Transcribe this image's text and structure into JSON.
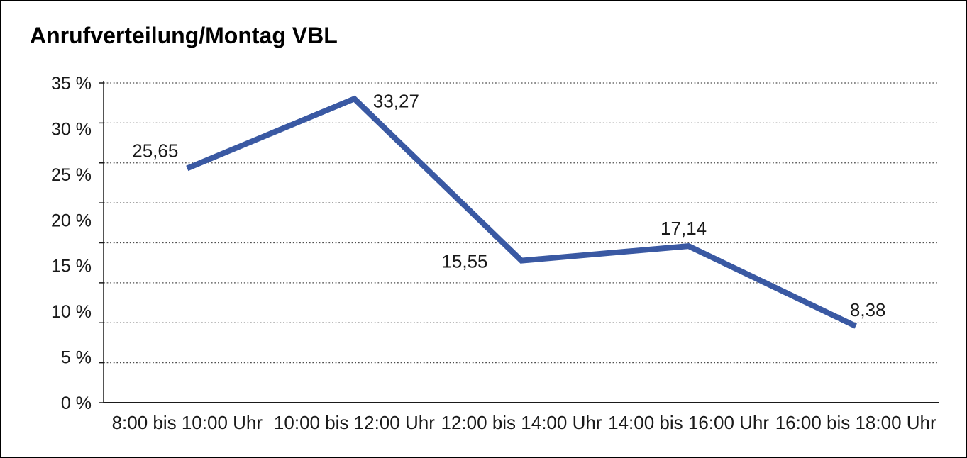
{
  "title": "Anrufverteilung/Montag VBL",
  "chart_data": {
    "type": "line",
    "title": "Anrufverteilung/Montag VBL",
    "categories": [
      "8:00 bis 10:00 Uhr",
      "10:00 bis 12:00 Uhr",
      "12:00 bis 14:00 Uhr",
      "14:00 bis 16:00 Uhr",
      "16:00 bis 18:00 Uhr"
    ],
    "values": [
      25.65,
      33.27,
      15.55,
      17.14,
      8.38
    ],
    "point_labels": [
      "25,65",
      "33,27",
      "15,55",
      "17,14",
      "8,38"
    ],
    "y_tick_labels": [
      "35 %",
      "30 %",
      "25 %",
      "20 %",
      "15 %",
      "10 %",
      "5 %",
      "0 %"
    ],
    "ylim": [
      0,
      35
    ],
    "y_unit": "%",
    "xlabel": "",
    "ylabel": "",
    "legend": "none",
    "grid": "horizontal-dotted",
    "grid_divisions": 8,
    "line_color": "#3A59A3",
    "grid_color": "#4d4d4d",
    "axis_color": "#1a1a1a",
    "text_color": "#1a1a1a"
  }
}
